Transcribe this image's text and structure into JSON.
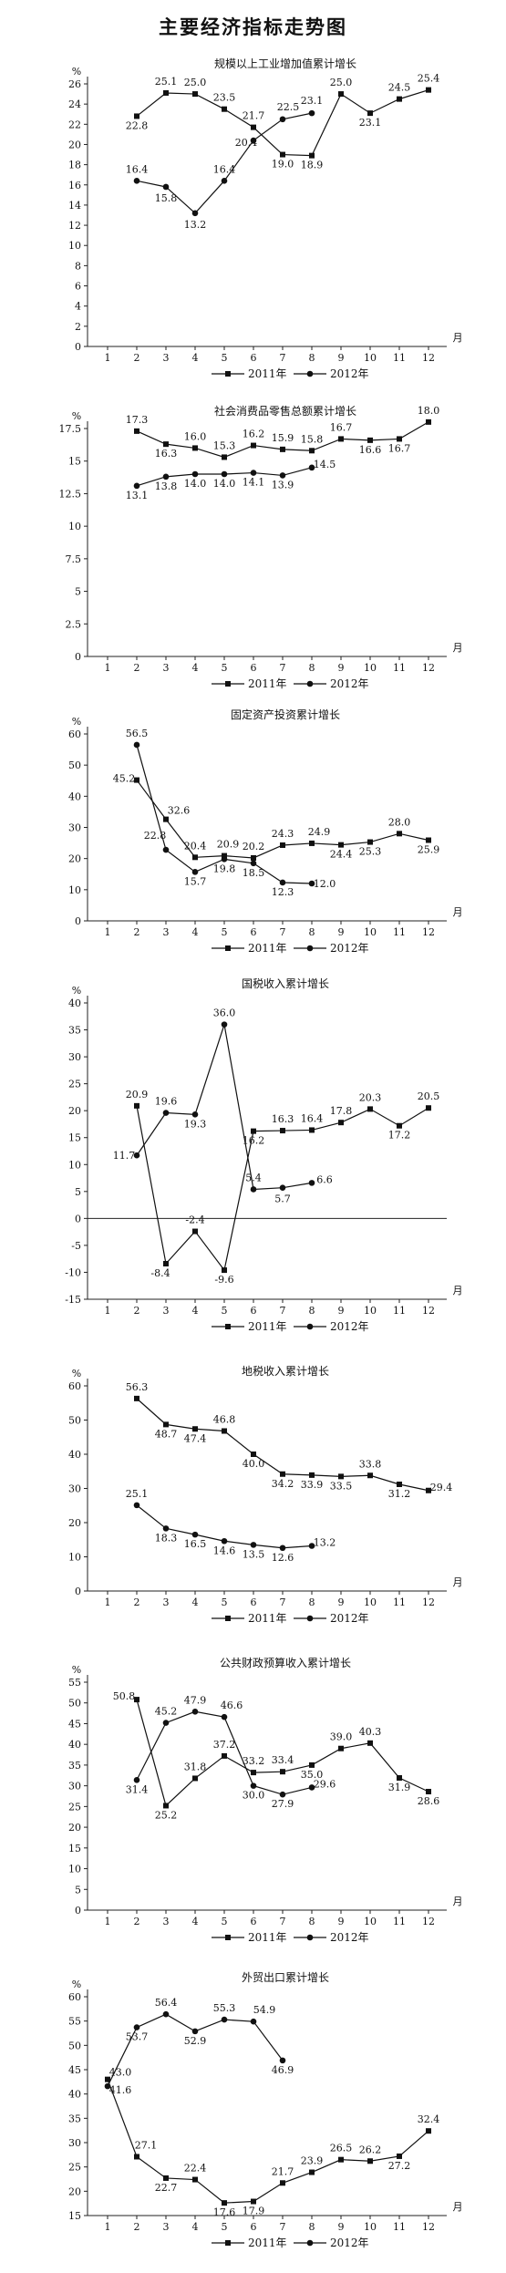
{
  "page_title": "主要经济指标走势图",
  "chart_data": [
    {
      "type": "line",
      "title": "规模以上工业增加值累计增长",
      "ylabel": "%",
      "xlabel": "月",
      "ylim": [
        0,
        26
      ],
      "yticks": [
        0,
        2,
        4,
        6,
        8,
        10,
        12,
        14,
        16,
        18,
        20,
        22,
        24,
        26
      ],
      "categories": [
        "1",
        "2",
        "3",
        "4",
        "5",
        "6",
        "7",
        "8",
        "9",
        "10",
        "11",
        "12"
      ],
      "series": [
        {
          "name": "2011年",
          "marker": "square",
          "values": [
            null,
            22.8,
            25.1,
            25.0,
            23.5,
            21.7,
            19.0,
            18.9,
            25.0,
            23.1,
            24.5,
            25.4
          ]
        },
        {
          "name": "2012年",
          "marker": "circle",
          "values": [
            null,
            16.4,
            15.8,
            13.2,
            16.4,
            20.4,
            22.5,
            23.1,
            null,
            null,
            null,
            null
          ]
        }
      ]
    },
    {
      "type": "line",
      "title": "社会消费品零售总额累计增长",
      "ylabel": "%",
      "xlabel": "月",
      "ylim": [
        0,
        17.5
      ],
      "yticks": [
        0,
        2.5,
        5,
        7.5,
        10,
        12.5,
        15,
        17.5
      ],
      "categories": [
        "1",
        "2",
        "3",
        "4",
        "5",
        "6",
        "7",
        "8",
        "9",
        "10",
        "11",
        "12"
      ],
      "series": [
        {
          "name": "2011年",
          "marker": "square",
          "values": [
            null,
            17.3,
            16.3,
            16.0,
            15.3,
            16.2,
            15.9,
            15.8,
            16.7,
            16.6,
            16.7,
            18.0
          ]
        },
        {
          "name": "2012年",
          "marker": "circle",
          "values": [
            null,
            13.1,
            13.8,
            14.0,
            14.0,
            14.1,
            13.9,
            14.5,
            null,
            null,
            null,
            null
          ]
        }
      ]
    },
    {
      "type": "line",
      "title": "固定资产投资累计增长",
      "ylabel": "%",
      "xlabel": "月",
      "ylim": [
        0,
        60
      ],
      "yticks": [
        0,
        10,
        20,
        30,
        40,
        50,
        60
      ],
      "categories": [
        "1",
        "2",
        "3",
        "4",
        "5",
        "6",
        "7",
        "8",
        "9",
        "10",
        "11",
        "12"
      ],
      "series": [
        {
          "name": "2011年",
          "marker": "square",
          "values": [
            null,
            45.2,
            32.6,
            20.4,
            20.9,
            20.2,
            24.3,
            24.9,
            24.4,
            25.3,
            28.0,
            25.9
          ]
        },
        {
          "name": "2012年",
          "marker": "circle",
          "values": [
            null,
            56.5,
            22.8,
            15.7,
            19.8,
            18.5,
            12.3,
            12.0,
            null,
            null,
            null,
            null
          ]
        }
      ]
    },
    {
      "type": "line",
      "title": "国税收入累计增长",
      "ylabel": "%",
      "xlabel": "月",
      "ylim": [
        -15,
        40
      ],
      "yticks": [
        -15,
        -10,
        -5,
        0,
        5,
        10,
        15,
        20,
        25,
        30,
        35,
        40
      ],
      "categories": [
        "1",
        "2",
        "3",
        "4",
        "5",
        "6",
        "7",
        "8",
        "9",
        "10",
        "11",
        "12"
      ],
      "series": [
        {
          "name": "2011年",
          "marker": "square",
          "values": [
            null,
            20.9,
            -8.4,
            -2.4,
            -9.6,
            16.2,
            16.3,
            16.4,
            17.8,
            20.3,
            17.2,
            20.5
          ]
        },
        {
          "name": "2012年",
          "marker": "circle",
          "values": [
            null,
            11.7,
            19.6,
            19.3,
            36.0,
            5.4,
            5.7,
            6.6,
            null,
            null,
            null,
            null
          ]
        }
      ]
    },
    {
      "type": "line",
      "title": "地税收入累计增长",
      "ylabel": "%",
      "xlabel": "月",
      "ylim": [
        0,
        60
      ],
      "yticks": [
        0,
        10,
        20,
        30,
        40,
        50,
        60
      ],
      "categories": [
        "1",
        "2",
        "3",
        "4",
        "5",
        "6",
        "7",
        "8",
        "9",
        "10",
        "11",
        "12"
      ],
      "series": [
        {
          "name": "2011年",
          "marker": "square",
          "values": [
            null,
            56.3,
            48.7,
            47.4,
            46.8,
            40.0,
            34.2,
            33.9,
            33.5,
            33.8,
            31.2,
            29.4
          ]
        },
        {
          "name": "2012年",
          "marker": "circle",
          "values": [
            null,
            25.1,
            18.3,
            16.5,
            14.6,
            13.5,
            12.6,
            13.2,
            null,
            null,
            null,
            null
          ]
        }
      ]
    },
    {
      "type": "line",
      "title": "公共财政预算收入累计增长",
      "ylabel": "%",
      "xlabel": "月",
      "ylim": [
        0,
        55
      ],
      "yticks": [
        0,
        5,
        10,
        15,
        20,
        25,
        30,
        35,
        40,
        45,
        50,
        55
      ],
      "categories": [
        "1",
        "2",
        "3",
        "4",
        "5",
        "6",
        "7",
        "8",
        "9",
        "10",
        "11",
        "12"
      ],
      "series": [
        {
          "name": "2011年",
          "marker": "square",
          "values": [
            null,
            50.8,
            25.2,
            31.8,
            37.2,
            33.2,
            33.4,
            35.0,
            39.0,
            40.3,
            31.9,
            28.6
          ]
        },
        {
          "name": "2012年",
          "marker": "circle",
          "values": [
            null,
            31.4,
            45.2,
            47.9,
            46.6,
            30.0,
            27.9,
            29.6,
            null,
            null,
            null,
            null
          ]
        }
      ]
    },
    {
      "type": "line",
      "title": "外贸出口累计增长",
      "ylabel": "%",
      "xlabel": "月",
      "ylim": [
        15,
        60
      ],
      "yticks": [
        15,
        20,
        25,
        30,
        35,
        40,
        45,
        50,
        55,
        60
      ],
      "categories": [
        "1",
        "2",
        "3",
        "4",
        "5",
        "6",
        "7",
        "8",
        "9",
        "10",
        "11",
        "12"
      ],
      "series": [
        {
          "name": "2011年",
          "marker": "square",
          "values": [
            43.0,
            27.1,
            22.7,
            22.4,
            17.6,
            17.9,
            21.7,
            23.9,
            26.5,
            26.2,
            27.2,
            32.4
          ]
        },
        {
          "name": "2012年",
          "marker": "circle",
          "values": [
            41.6,
            53.7,
            56.4,
            52.9,
            55.3,
            54.9,
            46.9,
            null,
            null,
            null,
            null,
            null
          ]
        }
      ]
    }
  ]
}
